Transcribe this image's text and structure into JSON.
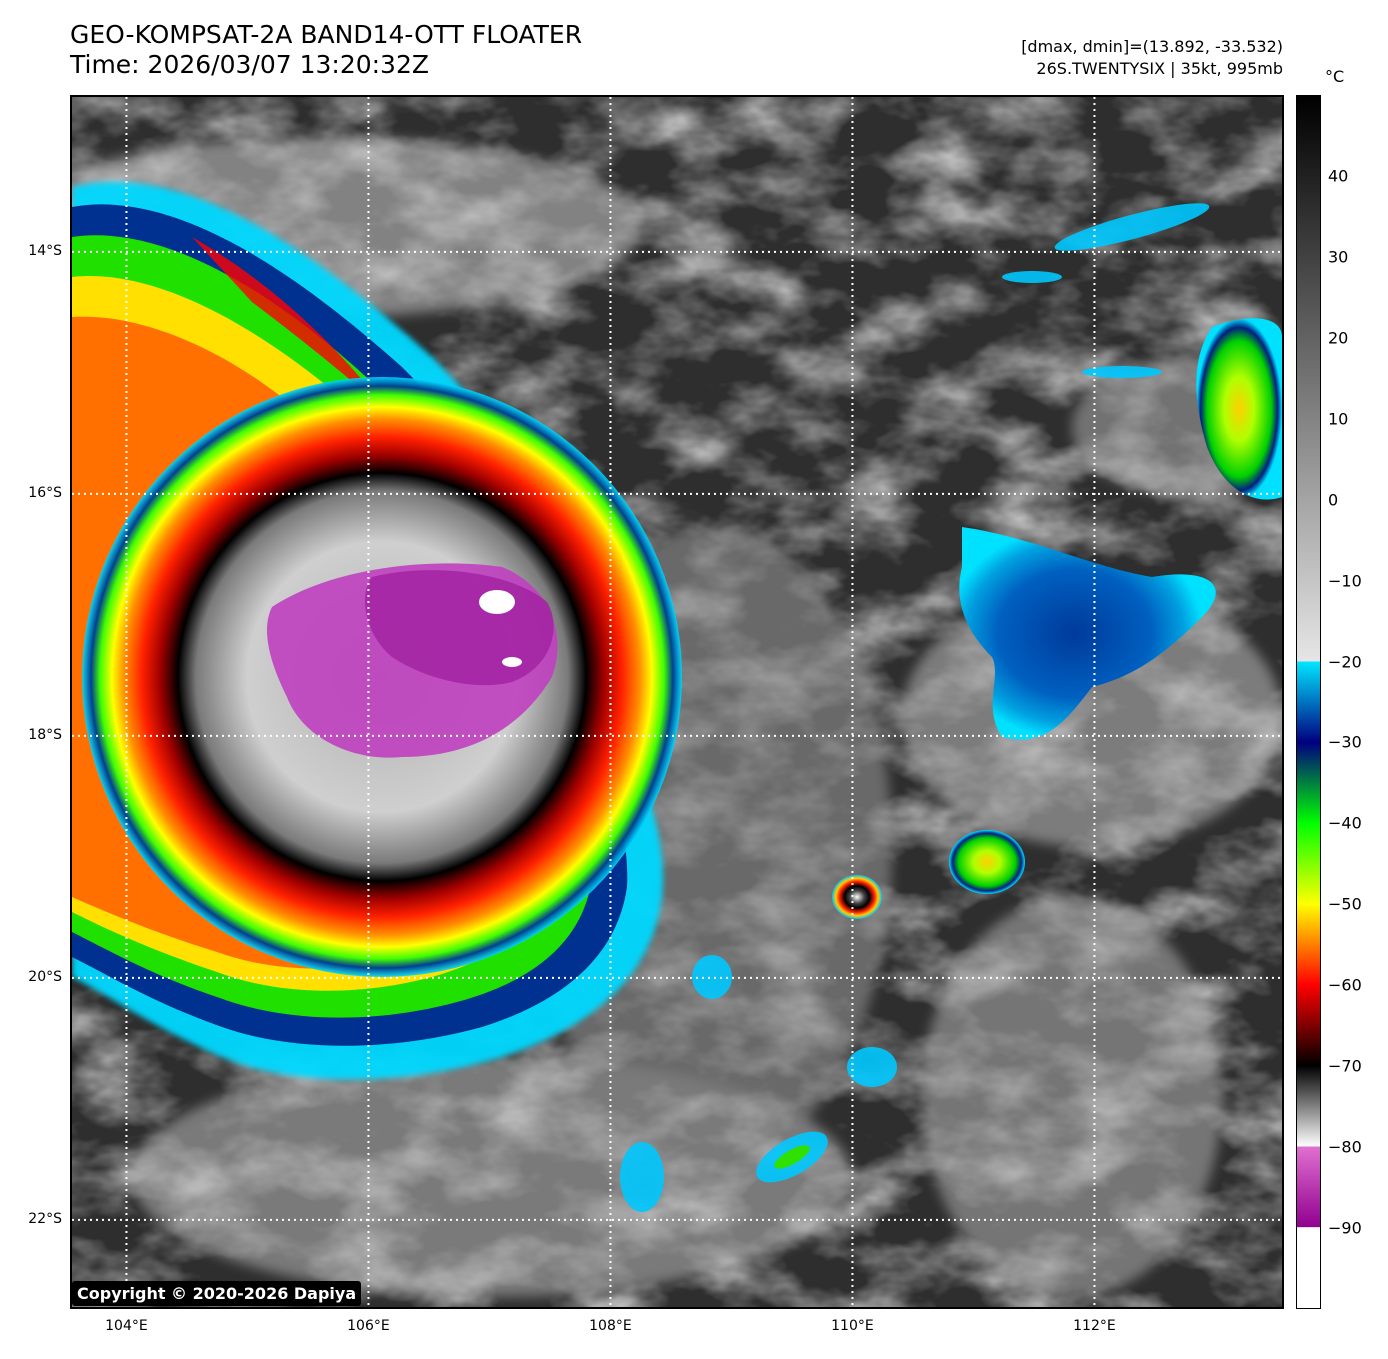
{
  "header": {
    "title_line1": "GEO-KOMPSAT-2A BAND14-OTT FLOATER",
    "title_line2": "Time: 2026/03/07 13:20:32Z",
    "range_text": "[dmax, dmin]=(13.892, -33.532)",
    "storm_text": "26S.TWENTYSIX | 35kt, 995mb"
  },
  "colorbar": {
    "unit": "°C",
    "ticks": [
      "40",
      "30",
      "20",
      "10",
      "0",
      "−10",
      "−20",
      "−30",
      "−40",
      "−50",
      "−60",
      "−70",
      "−80",
      "−90"
    ],
    "tick_values": [
      40,
      30,
      20,
      10,
      0,
      -10,
      -20,
      -30,
      -40,
      -50,
      -60,
      -70,
      -80,
      -90
    ],
    "range": [
      -100,
      50
    ],
    "stops": [
      {
        "value": 50,
        "color": "#000000"
      },
      {
        "value": -20,
        "color": "#e6e6e6"
      },
      {
        "value": -20.01,
        "color": "#00e6ff"
      },
      {
        "value": -30,
        "color": "#000080"
      },
      {
        "value": -40,
        "color": "#00ff00"
      },
      {
        "value": -50,
        "color": "#ffff00"
      },
      {
        "value": -60,
        "color": "#ff0000"
      },
      {
        "value": -70,
        "color": "#000000"
      },
      {
        "value": -80,
        "color": "#ffffff"
      },
      {
        "value": -80.01,
        "color": "#e070d0"
      },
      {
        "value": -90,
        "color": "#900090"
      },
      {
        "value": -90.01,
        "color": "#ffffff"
      },
      {
        "value": -100,
        "color": "#ffffff"
      }
    ]
  },
  "map": {
    "lat_labels": [
      "14°S",
      "16°S",
      "18°S",
      "20°S",
      "22°S"
    ],
    "lat_values": [
      -14,
      -16,
      -18,
      -20,
      -22
    ],
    "lon_labels": [
      "104°E",
      "106°E",
      "108°E",
      "110°E",
      "112°E"
    ],
    "lon_values": [
      104,
      106,
      108,
      110,
      112
    ],
    "lon_range": [
      103.55,
      113.55
    ],
    "lat_range": [
      -12.72,
      -22.72
    ],
    "storm_center": {
      "lon": 105.7,
      "lat": -17.3
    }
  },
  "copyright": "Copyright © 2020-2026 Dapiya"
}
